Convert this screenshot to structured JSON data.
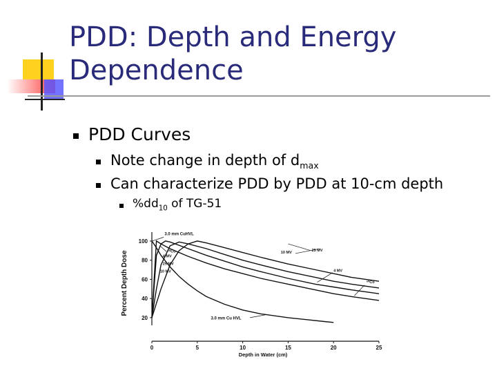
{
  "slide": {
    "title_line1": "PDD: Depth and Energy",
    "title_line2": "Dependence",
    "bullet1": "PDD Curves",
    "bullet1_sub1_prefix": "Note change in depth of d",
    "bullet1_sub1_sub": "max",
    "bullet1_sub2": "Can characterize PDD by PDD at 10-cm depth",
    "bullet1_sub2_sub1_prefix": "%dd",
    "bullet1_sub2_sub1_sub": "10",
    "bullet1_sub2_sub1_suffix": " of TG-51",
    "colors": {
      "title": "#2a2a7a",
      "deco_yellow": "#ffd21f",
      "deco_red": "#ff4040",
      "deco_blue": "#3a3aff"
    }
  },
  "chart_data": {
    "type": "line",
    "xlabel": "Depth in Water (cm)",
    "ylabel": "Percent Depth Dose",
    "xlim": [
      0,
      25
    ],
    "ylim": [
      12,
      105
    ],
    "x_ticks": [
      "0",
      "5",
      "10",
      "15",
      "20",
      "25"
    ],
    "y_ticks": [
      "20",
      "40",
      "60",
      "80",
      "100"
    ],
    "series": [
      {
        "name": "3.0 mm Cu HVL",
        "x": [
          0,
          0.5,
          1,
          2,
          3,
          4,
          5,
          6,
          8,
          10,
          12,
          15,
          17,
          19,
          20
        ],
        "values": [
          100,
          93,
          85,
          73,
          63,
          55,
          48,
          42,
          34,
          28,
          24,
          20,
          18,
          16,
          15
        ]
      },
      {
        "name": "⁶⁰Co",
        "x": [
          0,
          0.5,
          1,
          2,
          4,
          6,
          8,
          10,
          12,
          15,
          18,
          20,
          22,
          25
        ],
        "values": [
          20,
          100,
          97,
          92,
          84,
          77,
          71,
          66,
          61,
          55,
          49,
          45,
          42,
          38
        ]
      },
      {
        "name": "4 MV",
        "x": [
          0,
          0.5,
          1,
          1.5,
          2,
          4,
          6,
          8,
          10,
          12,
          15,
          18,
          20,
          22,
          25
        ],
        "values": [
          20,
          85,
          97,
          100,
          99,
          92,
          85,
          79,
          73,
          68,
          61,
          55,
          52,
          49,
          45
        ]
      },
      {
        "name": "10 MV",
        "x": [
          0,
          0.5,
          1,
          2,
          3,
          4,
          6,
          8,
          10,
          12,
          15,
          18,
          20,
          22,
          25
        ],
        "values": [
          20,
          50,
          75,
          95,
          99,
          97,
          92,
          86,
          80,
          75,
          68,
          62,
          58,
          55,
          51
        ]
      },
      {
        "name": "25 MV",
        "x": [
          0,
          0.5,
          1,
          2,
          3,
          4,
          5,
          6,
          8,
          10,
          12,
          15,
          18,
          20,
          22,
          25
        ],
        "values": [
          20,
          35,
          50,
          75,
          90,
          97,
          100,
          98,
          93,
          88,
          83,
          76,
          70,
          66,
          62,
          58
        ]
      }
    ],
    "labels": {
      "label_3cu_top": "3.0 mm CuHVL",
      "label_co_left": "⁶⁰Co",
      "label_4mv_left": "4 MV",
      "label_25mv_left": "25 MV",
      "label_10mv_left": "10 MV",
      "label_10mv_right": "10 MV",
      "label_25mv_right": "25 MV",
      "label_4mv_right": "4 MV",
      "label_co_right": "⁶⁰Co",
      "label_3cu_bottom": "3.0 mm Cu HVL"
    }
  }
}
